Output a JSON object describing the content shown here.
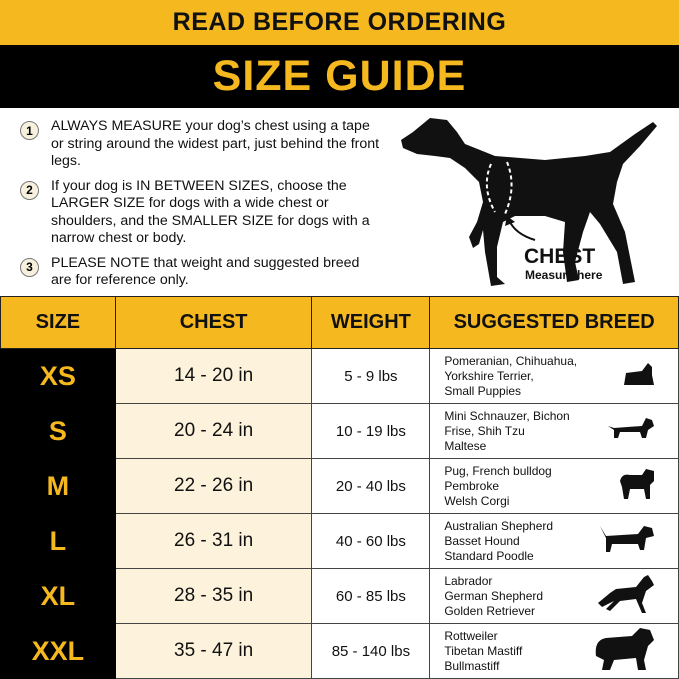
{
  "header": {
    "top": "READ BEFORE ORDERING",
    "title": "SIZE GUIDE"
  },
  "notes": [
    {
      "num": "1",
      "text": "ALWAYS MEASURE your dog’s chest using a tape or string around the widest part, just behind the front legs."
    },
    {
      "num": "2",
      "text": "If your dog is IN BETWEEN SIZES, choose the LARGER SIZE for dogs with a wide chest or shoulders, and the SMALLER SIZE for dogs with a narrow chest or body."
    },
    {
      "num": "3",
      "text": "PLEASE NOTE that weight and suggested breed are for reference only."
    }
  ],
  "illustration": {
    "label": "CHEST",
    "sublabel": "Measure here",
    "icon": "dog-silhouette-icon"
  },
  "colors": {
    "accent": "#f6b81f",
    "dark": "#000000",
    "cream": "#fdf3dc"
  },
  "table": {
    "headers": [
      "SIZE",
      "CHEST",
      "WEIGHT",
      "SUGGESTED BREED"
    ],
    "rows": [
      {
        "size": "XS",
        "chest": "14 - 20 in",
        "weight": "5 - 9 lbs",
        "breed": [
          "Pomeranian, Chihuahua,",
          "Yorkshire Terrier,",
          "Small Puppies"
        ],
        "icon": "yorkshire-terrier-icon"
      },
      {
        "size": "S",
        "chest": "20 - 24 in",
        "weight": "10 - 19 lbs",
        "breed": [
          "Mini Schnauzer, Bichon",
          "Frise, Shih Tzu",
          "Maltese"
        ],
        "icon": "dachshund-icon"
      },
      {
        "size": "M",
        "chest": "22 - 26 in",
        "weight": "20 - 40 lbs",
        "breed": [
          "Pug, French bulldog",
          "Pembroke",
          "Welsh Corgi"
        ],
        "icon": "pug-icon"
      },
      {
        "size": "L",
        "chest": "26 - 31 in",
        "weight": "40 - 60 lbs",
        "breed": [
          "Australian Shepherd",
          "Basset Hound",
          "Standard Poodle"
        ],
        "icon": "basset-hound-icon"
      },
      {
        "size": "XL",
        "chest": "28 - 35 in",
        "weight": "60 - 85 lbs",
        "breed": [
          "Labrador",
          "German Shepherd",
          "Golden Retriever"
        ],
        "icon": "german-shepherd-icon"
      },
      {
        "size": "XXL",
        "chest": "35 - 47 in",
        "weight": "85 - 140 lbs",
        "breed": [
          "Rottweiler",
          "Tibetan Mastiff",
          "Bullmastiff"
        ],
        "icon": "mastiff-icon"
      }
    ]
  }
}
